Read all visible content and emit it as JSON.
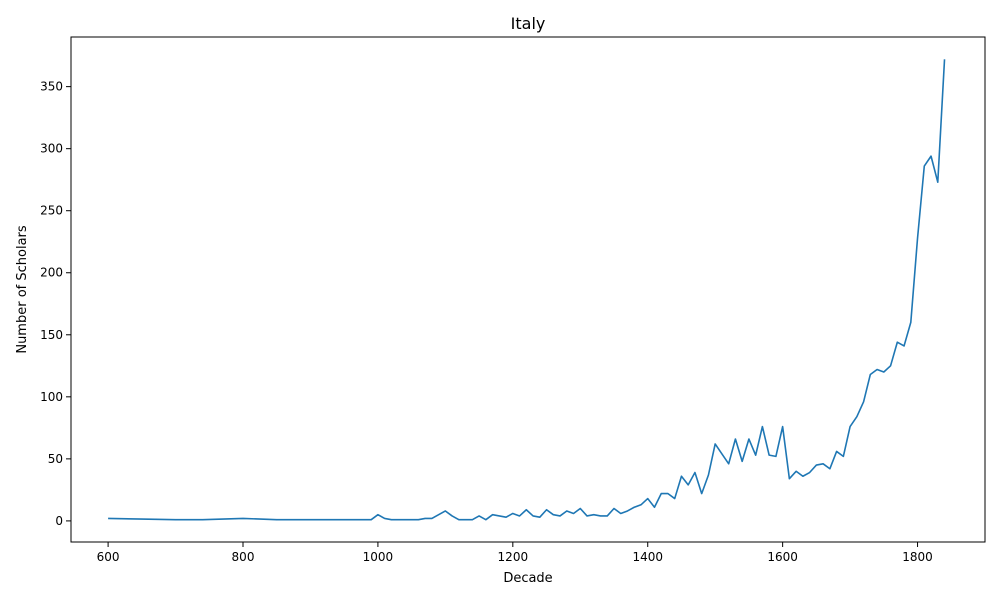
{
  "chart_data": {
    "type": "line",
    "title": "Italy",
    "xlabel": "Decade",
    "ylabel": "Number of Scholars",
    "xlim": [
      545,
      1900
    ],
    "ylim": [
      -17,
      390
    ],
    "xticks": [
      600,
      800,
      1000,
      1200,
      1400,
      1600,
      1800
    ],
    "yticks": [
      0,
      50,
      100,
      150,
      200,
      250,
      300,
      350
    ],
    "grid": false,
    "color": "#1f77b4",
    "series": [
      {
        "name": "",
        "x": [
          600,
          650,
          700,
          740,
          800,
          850,
          900,
          950,
          990,
          1000,
          1010,
          1020,
          1030,
          1040,
          1050,
          1060,
          1070,
          1080,
          1090,
          1100,
          1110,
          1120,
          1130,
          1140,
          1150,
          1160,
          1170,
          1180,
          1190,
          1200,
          1210,
          1220,
          1230,
          1240,
          1250,
          1260,
          1270,
          1280,
          1290,
          1300,
          1310,
          1320,
          1330,
          1340,
          1350,
          1360,
          1370,
          1380,
          1390,
          1400,
          1410,
          1420,
          1430,
          1440,
          1450,
          1460,
          1470,
          1480,
          1490,
          1500,
          1510,
          1520,
          1530,
          1540,
          1550,
          1560,
          1570,
          1580,
          1590,
          1600,
          1610,
          1620,
          1630,
          1640,
          1650,
          1660,
          1670,
          1680,
          1690,
          1700,
          1710,
          1720,
          1730,
          1740,
          1750,
          1760,
          1770,
          1780,
          1790,
          1800,
          1810,
          1820,
          1830,
          1840
        ],
        "y": [
          2,
          1.5,
          1,
          1,
          2,
          1,
          1,
          1,
          1,
          5,
          2,
          1,
          1,
          1,
          1,
          1,
          2,
          2,
          5,
          8,
          4,
          1,
          1,
          1,
          4,
          1,
          5,
          4,
          3,
          6,
          4,
          9,
          4,
          3,
          9,
          5,
          4,
          8,
          6,
          10,
          4,
          5,
          4,
          4,
          10,
          6,
          8,
          11,
          13,
          18,
          11,
          22,
          22,
          18,
          36,
          29,
          39,
          22,
          37,
          62,
          54,
          46,
          66,
          48,
          66,
          53,
          76,
          53,
          52,
          76,
          34,
          40,
          36,
          39,
          45,
          46,
          42,
          56,
          52,
          76,
          84,
          96,
          118,
          122,
          120,
          125,
          144,
          141,
          160,
          228,
          286,
          294,
          273,
          372
        ]
      }
    ]
  }
}
